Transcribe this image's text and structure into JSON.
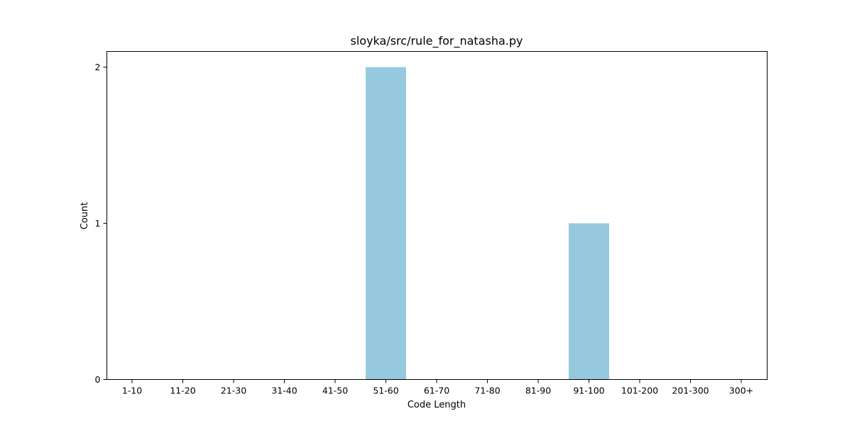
{
  "chart_data": {
    "type": "bar",
    "title": "sloyka/src/rule_for_natasha.py",
    "xlabel": "Code Length",
    "ylabel": "Count",
    "categories": [
      "1-10",
      "11-20",
      "21-30",
      "31-40",
      "41-50",
      "51-60",
      "61-70",
      "71-80",
      "81-90",
      "91-100",
      "101-200",
      "201-300",
      "300+"
    ],
    "values": [
      0,
      0,
      0,
      0,
      0,
      2,
      0,
      0,
      0,
      1,
      0,
      0,
      0
    ],
    "ylim": [
      0,
      2.1
    ],
    "yticks": [
      0,
      1,
      2
    ],
    "grid": false,
    "legend": "none",
    "bar_color": "#96c9dd"
  }
}
